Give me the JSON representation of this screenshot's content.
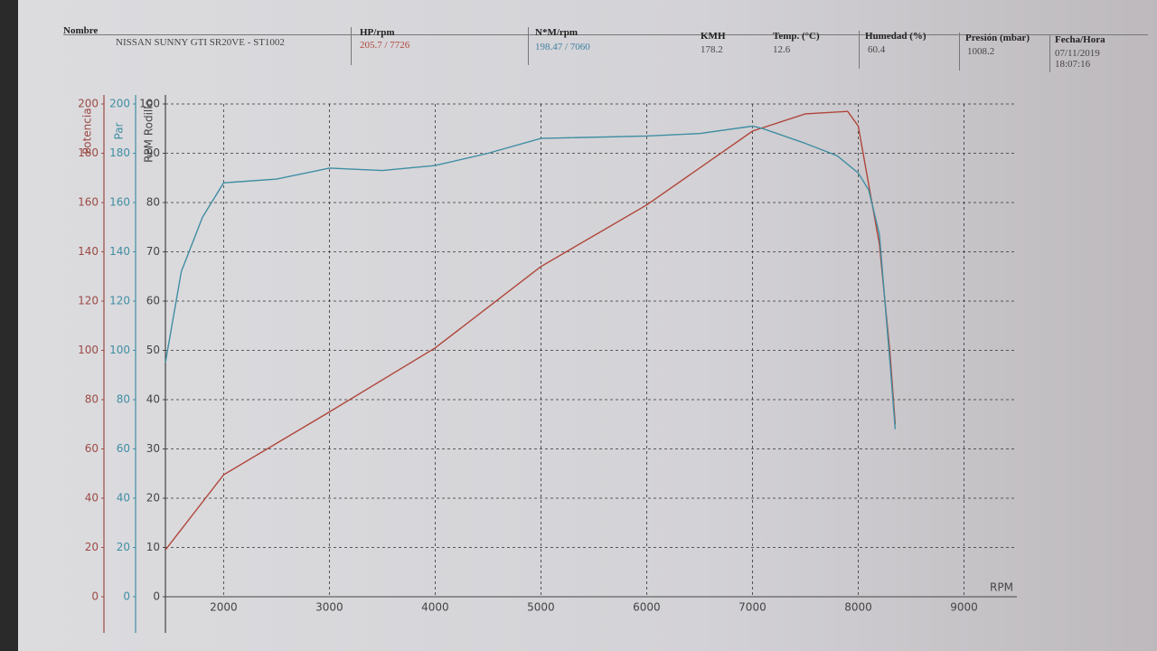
{
  "header": {
    "name_label": "Nombre",
    "name": "NISSAN SUNNY GTI SR20VE - ST1002",
    "hp_label": "HP/rpm",
    "hp": "205.7 / 7726",
    "nm_label": "N*M/rpm",
    "nm": "198.47 / 7060",
    "kmh_label": "KMH",
    "kmh": 178.2,
    "temp_label": "Temp. (°C)",
    "temp": 12.6,
    "hum_label": "Humedad (%)",
    "hum": 60.4,
    "pres_label": "Presión (mbar)",
    "pres": 1008.2,
    "date_label": "Fecha/Hora",
    "date": "07/11/2019 18:07:16"
  },
  "chart_data": {
    "type": "line",
    "xlabel": "RPM",
    "ylabel": "Potencia",
    "y2label": "Par",
    "y3label": "RPM Rodillo",
    "xlim": [
      1450,
      9500
    ],
    "xticks": [
      2000,
      3000,
      4000,
      5000,
      6000,
      7000,
      8000,
      9000
    ],
    "ylim": [
      0,
      200
    ],
    "yticks": [
      0,
      20,
      40,
      60,
      80,
      100,
      120,
      140,
      160,
      180,
      200
    ],
    "y2lim": [
      0,
      200
    ],
    "y2ticks": [
      0,
      20,
      40,
      60,
      80,
      100,
      120,
      140,
      160,
      180,
      200
    ],
    "y3lim": [
      0,
      100
    ],
    "y3ticks": [
      0,
      10,
      20,
      30,
      40,
      50,
      60,
      70,
      80,
      90,
      100
    ],
    "grid": true,
    "series": [
      {
        "name": "Potencia",
        "color": "#b0453a",
        "axis": "y",
        "x": [
          1450,
          2000,
          3000,
          4000,
          5000,
          6000,
          7000,
          7500,
          7900,
          8000,
          8200,
          8300,
          8350
        ],
        "values": [
          19,
          49.5,
          75,
          101,
          134,
          159,
          189,
          196,
          197,
          191,
          143,
          99,
          70
        ]
      },
      {
        "name": "Par",
        "color": "#3f8ea3",
        "axis": "y2",
        "x": [
          1450,
          1600,
          1800,
          2000,
          2500,
          3000,
          3500,
          4000,
          4500,
          5000,
          6000,
          6500,
          7000,
          7100,
          7500,
          7800,
          8000,
          8100,
          8200,
          8300,
          8350
        ],
        "values": [
          95,
          132,
          154,
          168,
          169.5,
          174,
          173,
          175,
          180,
          186,
          187,
          188,
          191,
          190,
          184,
          179,
          172,
          165,
          147,
          95,
          68
        ]
      }
    ]
  }
}
